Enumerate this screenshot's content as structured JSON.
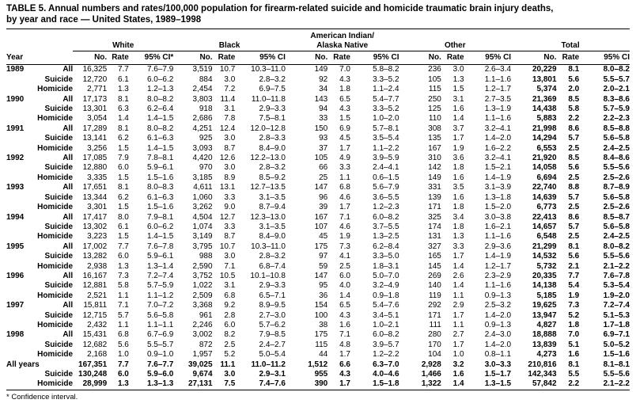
{
  "title": {
    "line1": "TABLE 5. Annual numbers and rates/100,000 population for firearm-related suicide and homicide traumatic brain injury deaths,",
    "line2": "by year and race — United States, 1989–1998"
  },
  "footnote": "* Confidence interval.",
  "table": {
    "year_label": "Year",
    "groups": [
      {
        "label": "White",
        "sub": [
          "No.",
          "Rate",
          "95% CI*"
        ]
      },
      {
        "label": "Black",
        "sub": [
          "No.",
          "Rate",
          "95% CI"
        ]
      },
      {
        "label": "American Indian/\nAlaska Native",
        "sub": [
          "No.",
          "Rate",
          "95% CI"
        ]
      },
      {
        "label": "Other",
        "sub": [
          "No.",
          "Rate",
          "95% CI"
        ]
      },
      {
        "label": "Total",
        "sub": [
          "No.",
          "Rate",
          "95% CI"
        ]
      }
    ],
    "rows": [
      {
        "year": "1989",
        "cat": "All",
        "total": false,
        "cells": [
          "16,325",
          "7.7",
          "7.6–7.9",
          "3,519",
          "10.7",
          "10.3–11.0",
          "149",
          "7.0",
          "5.8–8.2",
          "236",
          "3.0",
          "2.6–3.4",
          "20,229",
          "8.1",
          "8.0–8.2"
        ]
      },
      {
        "year": "",
        "cat": "Suicide",
        "total": false,
        "cells": [
          "12,720",
          "6.1",
          "6.0–6.2",
          "884",
          "3.0",
          "2.8–3.2",
          "92",
          "4.3",
          "3.3–5.2",
          "105",
          "1.3",
          "1.1–1.6",
          "13,801",
          "5.6",
          "5.5–5.7"
        ]
      },
      {
        "year": "",
        "cat": "Homicide",
        "total": false,
        "cells": [
          "2,771",
          "1.3",
          "1.2–1.3",
          "2,454",
          "7.2",
          "6.9–7.5",
          "34",
          "1.8",
          "1.1–2.4",
          "115",
          "1.5",
          "1.2–1.7",
          "5,374",
          "2.0",
          "2.0–2.1"
        ]
      },
      {
        "year": "1990",
        "cat": "All",
        "total": false,
        "cells": [
          "17,173",
          "8.1",
          "8.0–8.2",
          "3,803",
          "11.4",
          "11.0–11.8",
          "143",
          "6.5",
          "5.4–7.7",
          "250",
          "3.1",
          "2.7–3.5",
          "21,369",
          "8.5",
          "8.3–8.6"
        ]
      },
      {
        "year": "",
        "cat": "Suicide",
        "total": false,
        "cells": [
          "13,301",
          "6.3",
          "6.2–6.4",
          "918",
          "3.1",
          "2.9–3.3",
          "94",
          "4.3",
          "3.3–5.2",
          "125",
          "1.6",
          "1.3–1.9",
          "14,438",
          "5.8",
          "5.7–5.9"
        ]
      },
      {
        "year": "",
        "cat": "Homicide",
        "total": false,
        "cells": [
          "3,054",
          "1.4",
          "1.4–1.5",
          "2,686",
          "7.8",
          "7.5–8.1",
          "33",
          "1.5",
          "1.0–2.0",
          "110",
          "1.4",
          "1.1–1.6",
          "5,883",
          "2.2",
          "2.2–2.3"
        ]
      },
      {
        "year": "1991",
        "cat": "All",
        "total": false,
        "cells": [
          "17,289",
          "8.1",
          "8.0–8.2",
          "4,251",
          "12.4",
          "12.0–12.8",
          "150",
          "6.9",
          "5.7–8.1",
          "308",
          "3.7",
          "3.2–4.1",
          "21,998",
          "8.6",
          "8.5–8.8"
        ]
      },
      {
        "year": "",
        "cat": "Suicide",
        "total": false,
        "cells": [
          "13,141",
          "6.2",
          "6.1–6.3",
          "925",
          "3.0",
          "2.8–3.3",
          "93",
          "4.5",
          "3.5–5.4",
          "135",
          "1.7",
          "1.4–2.0",
          "14,294",
          "5.7",
          "5.6–5.8"
        ]
      },
      {
        "year": "",
        "cat": "Homicide",
        "total": false,
        "cells": [
          "3,256",
          "1.5",
          "1.4–1.5",
          "3,093",
          "8.7",
          "8.4–9.0",
          "37",
          "1.7",
          "1.1–2.2",
          "167",
          "1.9",
          "1.6–2.2",
          "6,553",
          "2.5",
          "2.4–2.5"
        ]
      },
      {
        "year": "1992",
        "cat": "All",
        "total": false,
        "cells": [
          "17,085",
          "7.9",
          "7.8–8.1",
          "4,420",
          "12.6",
          "12.2–13.0",
          "105",
          "4.9",
          "3.9–5.9",
          "310",
          "3.6",
          "3.2–4.1",
          "21,920",
          "8.5",
          "8.4–8.6"
        ]
      },
      {
        "year": "",
        "cat": "Suicide",
        "total": false,
        "cells": [
          "12,880",
          "6.0",
          "5.9–6.1",
          "970",
          "3.0",
          "2.8–3.2",
          "66",
          "3.3",
          "2.4–4.1",
          "142",
          "1.8",
          "1.5–2.1",
          "14,058",
          "5.6",
          "5.5–5.6"
        ]
      },
      {
        "year": "",
        "cat": "Homicide",
        "total": false,
        "cells": [
          "3,335",
          "1.5",
          "1.5–1.6",
          "3,185",
          "8.9",
          "8.5–9.2",
          "25",
          "1.1",
          "0.6–1.5",
          "149",
          "1.6",
          "1.4–1.9",
          "6,694",
          "2.5",
          "2.5–2.6"
        ]
      },
      {
        "year": "1993",
        "cat": "All",
        "total": false,
        "cells": [
          "17,651",
          "8.1",
          "8.0–8.3",
          "4,611",
          "13.1",
          "12.7–13.5",
          "147",
          "6.8",
          "5.6–7.9",
          "331",
          "3.5",
          "3.1–3.9",
          "22,740",
          "8.8",
          "8.7–8.9"
        ]
      },
      {
        "year": "",
        "cat": "Suicide",
        "total": false,
        "cells": [
          "13,344",
          "6.2",
          "6.1–6.3",
          "1,060",
          "3.3",
          "3.1–3.5",
          "96",
          "4.6",
          "3.6–5.5",
          "139",
          "1.6",
          "1.3–1.8",
          "14,639",
          "5.7",
          "5.6–5.8"
        ]
      },
      {
        "year": "",
        "cat": "Homicide",
        "total": false,
        "cells": [
          "3,301",
          "1.5",
          "1.5–1.6",
          "3,262",
          "9.0",
          "8.7–9.4",
          "39",
          "1.7",
          "1.2–2.3",
          "171",
          "1.8",
          "1.5–2.0",
          "6,773",
          "2.5",
          "2.5–2.6"
        ]
      },
      {
        "year": "1994",
        "cat": "All",
        "total": false,
        "cells": [
          "17,417",
          "8.0",
          "7.9–8.1",
          "4,504",
          "12.7",
          "12.3–13.0",
          "167",
          "7.1",
          "6.0–8.2",
          "325",
          "3.4",
          "3.0–3.8",
          "22,413",
          "8.6",
          "8.5–8.7"
        ]
      },
      {
        "year": "",
        "cat": "Suicide",
        "total": false,
        "cells": [
          "13,302",
          "6.1",
          "6.0–6.2",
          "1,074",
          "3.3",
          "3.1–3.5",
          "107",
          "4.6",
          "3.7–5.5",
          "174",
          "1.8",
          "1.6–2.1",
          "14,657",
          "5.7",
          "5.6–5.8"
        ]
      },
      {
        "year": "",
        "cat": "Homicide",
        "total": false,
        "cells": [
          "3,223",
          "1.5",
          "1.4–1.5",
          "3,149",
          "8.7",
          "8.4–9.0",
          "45",
          "1.9",
          "1.3–2.5",
          "131",
          "1.3",
          "1.1–1.6",
          "6,548",
          "2.5",
          "2.4–2.5"
        ]
      },
      {
        "year": "1995",
        "cat": "All",
        "total": false,
        "cells": [
          "17,002",
          "7.7",
          "7.6–7.8",
          "3,795",
          "10.7",
          "10.3–11.0",
          "175",
          "7.3",
          "6.2–8.4",
          "327",
          "3.3",
          "2.9–3.6",
          "21,299",
          "8.1",
          "8.0–8.2"
        ]
      },
      {
        "year": "",
        "cat": "Suicide",
        "total": false,
        "cells": [
          "13,282",
          "6.0",
          "5.9–6.1",
          "988",
          "3.0",
          "2.8–3.2",
          "97",
          "4.1",
          "3.3–5.0",
          "165",
          "1.7",
          "1.4–1.9",
          "14,532",
          "5.6",
          "5.5–5.6"
        ]
      },
      {
        "year": "",
        "cat": "Homicide",
        "total": false,
        "cells": [
          "2,938",
          "1.3",
          "1.3–1.4",
          "2,590",
          "7.1",
          "6.8–7.4",
          "59",
          "2.5",
          "1.8–3.1",
          "145",
          "1.4",
          "1.2–1.7",
          "5,732",
          "2.1",
          "2.1–2.2"
        ]
      },
      {
        "year": "1996",
        "cat": "All",
        "total": false,
        "cells": [
          "16,167",
          "7.3",
          "7.2–7.4",
          "3,752",
          "10.5",
          "10.1–10.8",
          "147",
          "6.0",
          "5.0–7.0",
          "269",
          "2.6",
          "2.3–2.9",
          "20,335",
          "7.7",
          "7.6–7.8"
        ]
      },
      {
        "year": "",
        "cat": "Suicide",
        "total": false,
        "cells": [
          "12,881",
          "5.8",
          "5.7–5.9",
          "1,022",
          "3.1",
          "2.9–3.3",
          "95",
          "4.0",
          "3.2–4.9",
          "140",
          "1.4",
          "1.1–1.6",
          "14,138",
          "5.4",
          "5.3–5.4"
        ]
      },
      {
        "year": "",
        "cat": "Homicide",
        "total": false,
        "cells": [
          "2,521",
          "1.1",
          "1.1–1.2",
          "2,509",
          "6.8",
          "6.5–7.1",
          "36",
          "1.4",
          "0.9–1.8",
          "119",
          "1.1",
          "0.9–1.3",
          "5,185",
          "1.9",
          "1.9–2.0"
        ]
      },
      {
        "year": "1997",
        "cat": "All",
        "total": false,
        "cells": [
          "15,811",
          "7.1",
          "7.0–7.2",
          "3,368",
          "9.2",
          "8.9–9.5",
          "154",
          "6.5",
          "5.4–7.6",
          "292",
          "2.9",
          "2.5–3.2",
          "19,625",
          "7.3",
          "7.2–7.4"
        ]
      },
      {
        "year": "",
        "cat": "Suicide",
        "total": false,
        "cells": [
          "12,715",
          "5.7",
          "5.6–5.8",
          "961",
          "2.8",
          "2.7–3.0",
          "100",
          "4.3",
          "3.4–5.1",
          "171",
          "1.7",
          "1.4–2.0",
          "13,947",
          "5.2",
          "5.1–5.3"
        ]
      },
      {
        "year": "",
        "cat": "Homicide",
        "total": false,
        "cells": [
          "2,432",
          "1.1",
          "1.1–1.1",
          "2,246",
          "6.0",
          "5.7–6.2",
          "38",
          "1.6",
          "1.0–2.1",
          "111",
          "1.1",
          "0.9–1.3",
          "4,827",
          "1.8",
          "1.7–1.8"
        ]
      },
      {
        "year": "1998",
        "cat": "All",
        "total": false,
        "cells": [
          "15,431",
          "6.8",
          "6.7–6.9",
          "3,002",
          "8.2",
          "7.9–8.5",
          "175",
          "7.1",
          "6.0–8.2",
          "280",
          "2.7",
          "2.4–3.0",
          "18,888",
          "7.0",
          "6.9–7.1"
        ]
      },
      {
        "year": "",
        "cat": "Suicide",
        "total": false,
        "cells": [
          "12,682",
          "5.6",
          "5.5–5.7",
          "872",
          "2.5",
          "2.4–2.7",
          "115",
          "4.8",
          "3.9–5.7",
          "170",
          "1.7",
          "1.4–2.0",
          "13,839",
          "5.1",
          "5.0–5.2"
        ]
      },
      {
        "year": "",
        "cat": "Homicide",
        "total": false,
        "cells": [
          "2,168",
          "1.0",
          "0.9–1.0",
          "1,957",
          "5.2",
          "5.0–5.4",
          "44",
          "1.7",
          "1.2–2.2",
          "104",
          "1.0",
          "0.8–1.1",
          "4,273",
          "1.6",
          "1.5–1.6"
        ]
      },
      {
        "year": "All years",
        "cat": "",
        "total": true,
        "cells": [
          "167,351",
          "7.7",
          "7.6–7.7",
          "39,025",
          "11.1",
          "11.0–11.2",
          "1,512",
          "6.6",
          "6.3–7.0",
          "2,928",
          "3.2",
          "3.0–3.3",
          "210,816",
          "8.1",
          "8.1–8.1"
        ]
      },
      {
        "year": "",
        "cat": "Suicide",
        "total": true,
        "cells": [
          "130,248",
          "6.0",
          "5.9–6.0",
          "9,674",
          "3.0",
          "2.9–3.1",
          "955",
          "4.3",
          "4.0–4.6",
          "1,466",
          "1.6",
          "1.5–1.7",
          "142,343",
          "5.5",
          "5.5–5.6"
        ]
      },
      {
        "year": "",
        "cat": "Homicide",
        "total": true,
        "cells": [
          "28,999",
          "1.3",
          "1.3–1.3",
          "27,131",
          "7.5",
          "7.4–7.6",
          "390",
          "1.7",
          "1.5–1.8",
          "1,322",
          "1.4",
          "1.3–1.5",
          "57,842",
          "2.2",
          "2.1–2.2"
        ]
      }
    ]
  }
}
